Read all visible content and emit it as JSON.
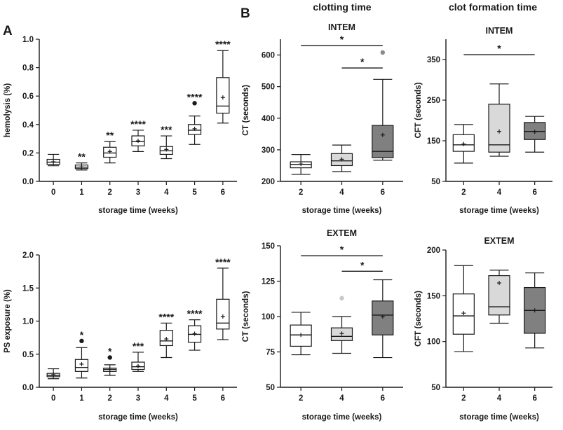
{
  "figure": {
    "panel_a_label": "A",
    "panel_b_label": "B",
    "col_titles": [
      "clotting time",
      "clot formation time"
    ]
  },
  "chart_data": [
    {
      "id": "hemolysis",
      "type": "boxplot",
      "title": "",
      "xlabel": "storage time (weeks)",
      "ylabel": "hemolysis (%)",
      "categories": [
        "0",
        "1",
        "2",
        "3",
        "4",
        "5",
        "6"
      ],
      "ylim": [
        0,
        1.0
      ],
      "yticks": [
        0.0,
        0.2,
        0.4,
        0.6,
        0.8,
        1.0
      ],
      "ytick_labels": [
        "0.0",
        "0.2",
        "0.4",
        "0.6",
        "0.8",
        "1.0"
      ],
      "boxes": [
        {
          "min": 0.11,
          "q1": 0.12,
          "median": 0.135,
          "q3": 0.155,
          "max": 0.19,
          "mean": 0.138,
          "fill": "#ffffff",
          "outliers": [],
          "sig": ""
        },
        {
          "min": 0.08,
          "q1": 0.09,
          "median": 0.1,
          "q3": 0.115,
          "max": 0.13,
          "mean": 0.102,
          "fill": "#ffffff",
          "outliers": [],
          "sig": "**"
        },
        {
          "min": 0.13,
          "q1": 0.17,
          "median": 0.2,
          "q3": 0.24,
          "max": 0.28,
          "mean": 0.21,
          "fill": "#ffffff",
          "outliers": [],
          "sig": "**"
        },
        {
          "min": 0.21,
          "q1": 0.25,
          "median": 0.28,
          "q3": 0.32,
          "max": 0.36,
          "mean": 0.285,
          "fill": "#ffffff",
          "outliers": [],
          "sig": "****"
        },
        {
          "min": 0.16,
          "q1": 0.19,
          "median": 0.215,
          "q3": 0.245,
          "max": 0.32,
          "mean": 0.225,
          "fill": "#ffffff",
          "outliers": [],
          "sig": "***"
        },
        {
          "min": 0.26,
          "q1": 0.33,
          "median": 0.36,
          "q3": 0.4,
          "max": 0.46,
          "mean": 0.37,
          "fill": "#ffffff",
          "outliers": [
            0.55
          ],
          "sig": "****"
        },
        {
          "min": 0.41,
          "q1": 0.48,
          "median": 0.53,
          "q3": 0.73,
          "max": 0.92,
          "mean": 0.59,
          "fill": "#ffffff",
          "outliers": [],
          "sig": "****"
        }
      ],
      "brackets": []
    },
    {
      "id": "ps_exposure",
      "type": "boxplot",
      "title": "",
      "xlabel": "storage time (weeks)",
      "ylabel": "PS exposure (%)",
      "categories": [
        "0",
        "1",
        "2",
        "3",
        "4",
        "5",
        "6"
      ],
      "ylim": [
        0,
        2.0
      ],
      "yticks": [
        0.0,
        0.5,
        1.0,
        1.5,
        2.0
      ],
      "ytick_labels": [
        "0.0",
        "0.5",
        "1.0",
        "1.5",
        "2.0"
      ],
      "boxes": [
        {
          "min": 0.13,
          "q1": 0.16,
          "median": 0.18,
          "q3": 0.21,
          "max": 0.28,
          "mean": 0.19,
          "fill": "#ffffff",
          "outliers": [],
          "sig": ""
        },
        {
          "min": 0.14,
          "q1": 0.24,
          "median": 0.3,
          "q3": 0.42,
          "max": 0.6,
          "mean": 0.35,
          "fill": "#ffffff",
          "outliers": [
            0.7
          ],
          "sig": "*"
        },
        {
          "min": 0.18,
          "q1": 0.24,
          "median": 0.27,
          "q3": 0.29,
          "max": 0.34,
          "mean": 0.27,
          "fill": "#ffffff",
          "outliers": [
            0.45
          ],
          "sig": "*"
        },
        {
          "min": 0.24,
          "q1": 0.27,
          "median": 0.31,
          "q3": 0.38,
          "max": 0.53,
          "mean": 0.32,
          "fill": "#ffffff",
          "outliers": [],
          "sig": "***"
        },
        {
          "min": 0.45,
          "q1": 0.63,
          "median": 0.7,
          "q3": 0.86,
          "max": 0.97,
          "mean": 0.73,
          "fill": "#ffffff",
          "outliers": [],
          "sig": "****"
        },
        {
          "min": 0.56,
          "q1": 0.68,
          "median": 0.8,
          "q3": 0.93,
          "max": 1.02,
          "mean": 0.81,
          "fill": "#ffffff",
          "outliers": [],
          "sig": "****"
        },
        {
          "min": 0.72,
          "q1": 0.88,
          "median": 0.97,
          "q3": 1.33,
          "max": 1.8,
          "mean": 1.07,
          "fill": "#ffffff",
          "outliers": [],
          "sig": "****"
        }
      ],
      "brackets": []
    },
    {
      "id": "ct_intem",
      "type": "boxplot",
      "title": "INTEM",
      "xlabel": "storage time (weeks)",
      "ylabel": "CT (seconds)",
      "categories": [
        "2",
        "4",
        "6"
      ],
      "ylim": [
        200,
        650
      ],
      "yticks": [
        200,
        300,
        400,
        500,
        600
      ],
      "ytick_labels": [
        "200",
        "300",
        "400",
        "500",
        "600"
      ],
      "boxes": [
        {
          "min": 222,
          "q1": 243,
          "median": 254,
          "q3": 262,
          "max": 285,
          "mean": 255,
          "fill": "#ffffff",
          "outliers": [],
          "outlier_color": "#888888",
          "sig": ""
        },
        {
          "min": 231,
          "q1": 250,
          "median": 265,
          "q3": 288,
          "max": 315,
          "mean": 270,
          "fill": "#d9d9d9",
          "outliers": [],
          "outlier_color": "#c0c0c0",
          "sig": ""
        },
        {
          "min": 267,
          "q1": 275,
          "median": 295,
          "q3": 377,
          "max": 523,
          "mean": 347,
          "fill": "#808080",
          "outliers": [
            608
          ],
          "outlier_color": "#8a8a8a",
          "sig": ""
        }
      ],
      "brackets": [
        {
          "from": 0,
          "to": 2,
          "y": 630,
          "label": "*"
        },
        {
          "from": 1,
          "to": 2,
          "y": 559,
          "label": "*"
        }
      ]
    },
    {
      "id": "cft_intem",
      "type": "boxplot",
      "title": "INTEM",
      "xlabel": "storage time (weeks)",
      "ylabel": "CFT (seconds)",
      "categories": [
        "2",
        "4",
        "6"
      ],
      "ylim": [
        50,
        400
      ],
      "yticks": [
        50,
        150,
        250,
        350
      ],
      "ytick_labels": [
        "50",
        "150",
        "250",
        "350"
      ],
      "boxes": [
        {
          "min": 95,
          "q1": 124,
          "median": 140,
          "q3": 165,
          "max": 190,
          "mean": 142,
          "fill": "#ffffff",
          "outliers": [],
          "sig": ""
        },
        {
          "min": 112,
          "q1": 122,
          "median": 140,
          "q3": 240,
          "max": 290,
          "mean": 173,
          "fill": "#d9d9d9",
          "outliers": [],
          "sig": ""
        },
        {
          "min": 122,
          "q1": 153,
          "median": 173,
          "q3": 195,
          "max": 210,
          "mean": 172,
          "fill": "#808080",
          "outliers": [],
          "sig": ""
        }
      ],
      "brackets": [
        {
          "from": 0,
          "to": 2,
          "y": 362,
          "label": "*"
        }
      ]
    },
    {
      "id": "ct_extem",
      "type": "boxplot",
      "title": "EXTEM",
      "xlabel": "storage time (weeks)",
      "ylabel": "CT (seconds)",
      "categories": [
        "2",
        "4",
        "6"
      ],
      "ylim": [
        50,
        150
      ],
      "yticks": [
        50,
        75,
        100,
        125,
        150
      ],
      "ytick_labels": [
        "50",
        "75",
        "100",
        "125",
        "150"
      ],
      "boxes": [
        {
          "min": 73,
          "q1": 79,
          "median": 87,
          "q3": 94,
          "max": 103,
          "mean": 87,
          "fill": "#ffffff",
          "outliers": [],
          "outlier_color": "#888888",
          "sig": ""
        },
        {
          "min": 74,
          "q1": 83,
          "median": 86,
          "q3": 92,
          "max": 100,
          "mean": 88,
          "fill": "#d9d9d9",
          "outliers": [
            113
          ],
          "outlier_color": "#c8c8c8",
          "sig": ""
        },
        {
          "min": 71,
          "q1": 87,
          "median": 101,
          "q3": 111,
          "max": 126,
          "mean": 100,
          "fill": "#808080",
          "outliers": [],
          "outlier_color": "#888888",
          "sig": ""
        }
      ],
      "brackets": [
        {
          "from": 0,
          "to": 2,
          "y": 143,
          "label": "*"
        },
        {
          "from": 1,
          "to": 2,
          "y": 132,
          "label": "*"
        }
      ]
    },
    {
      "id": "cft_extem",
      "type": "boxplot",
      "title": "EXTEM",
      "xlabel": "storage time (weeks)",
      "ylabel": "CFT (seconds)",
      "categories": [
        "2",
        "4",
        "6"
      ],
      "ylim": [
        50,
        200
      ],
      "yticks": [
        50,
        100,
        150,
        200
      ],
      "ytick_labels": [
        "50",
        "100",
        "150",
        "200"
      ],
      "boxes": [
        {
          "min": 89,
          "q1": 108,
          "median": 128,
          "q3": 152,
          "max": 183,
          "mean": 131,
          "fill": "#ffffff",
          "outliers": [],
          "sig": ""
        },
        {
          "min": 120,
          "q1": 129,
          "median": 138,
          "q3": 172,
          "max": 178,
          "mean": 164,
          "fill": "#d9d9d9",
          "outliers": [],
          "sig": ""
        },
        {
          "min": 93,
          "q1": 109,
          "median": 134,
          "q3": 159,
          "max": 175,
          "mean": 134,
          "fill": "#808080",
          "outliers": [],
          "sig": ""
        }
      ],
      "brackets": []
    }
  ]
}
